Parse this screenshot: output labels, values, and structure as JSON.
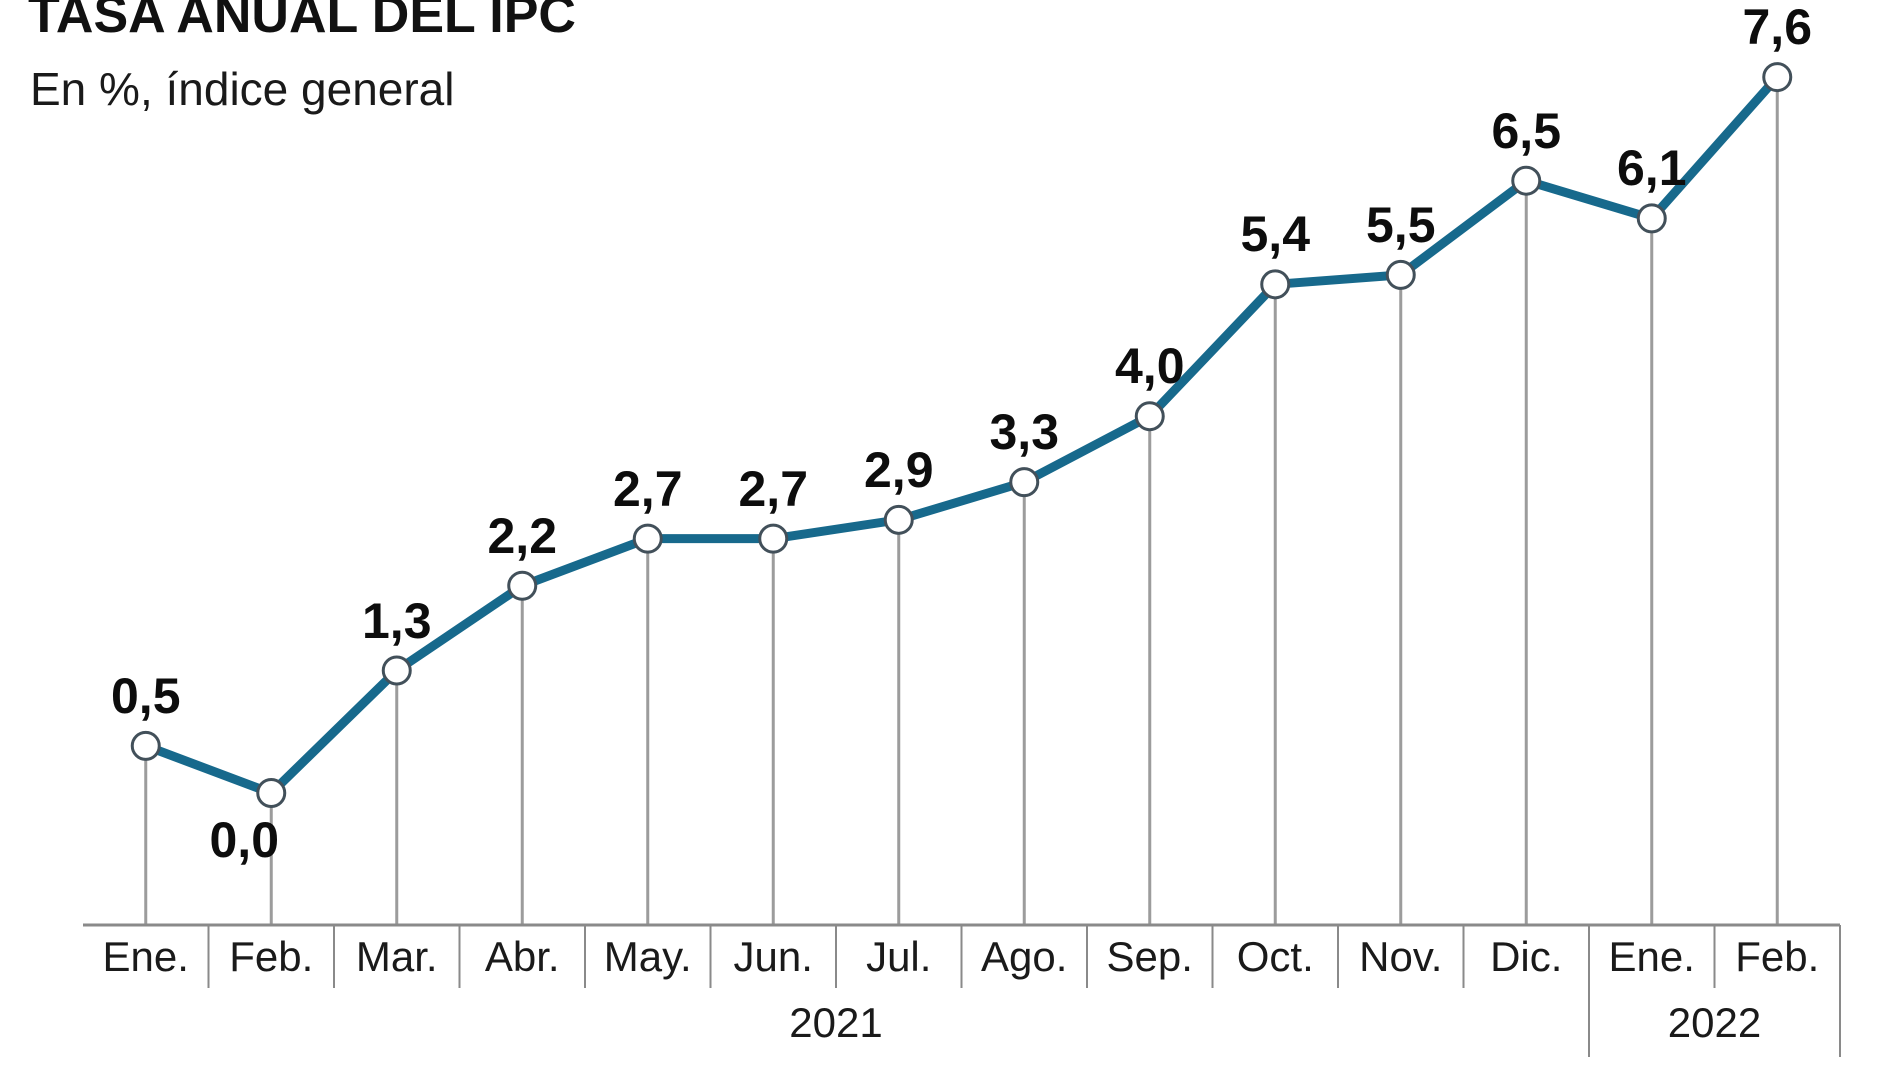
{
  "header": {
    "title": "TASA ANUAL DEL IPC",
    "subtitle": "En %, índice general"
  },
  "chart_data": {
    "type": "line",
    "title": "TASA ANUAL DEL IPC",
    "subtitle": "En %, índice general",
    "unit": "%",
    "categories": [
      "Ene.",
      "Feb.",
      "Mar.",
      "Abr.",
      "May.",
      "Jun.",
      "Jul.",
      "Ago.",
      "Sep.",
      "Oct.",
      "Nov.",
      "Dic.",
      "Ene.",
      "Feb."
    ],
    "values": [
      0.5,
      0.0,
      1.3,
      2.2,
      2.7,
      2.7,
      2.9,
      3.3,
      4.0,
      5.4,
      5.5,
      6.5,
      6.1,
      7.6
    ],
    "value_labels": [
      "0,5",
      "0,0",
      "1,3",
      "2,2",
      "2,7",
      "2,7",
      "2,9",
      "3,3",
      "4,0",
      "5,4",
      "5,5",
      "6,5",
      "6,1",
      "7,6"
    ],
    "label_below_indexes": [
      1
    ],
    "year_groups": [
      {
        "label": "2021",
        "from": 0,
        "to": 11
      },
      {
        "label": "2022",
        "from": 12,
        "to": 13
      }
    ],
    "xlabel": "",
    "ylabel": "",
    "ylim": [
      -1.4,
      8.4
    ],
    "grid": false,
    "legend": null,
    "marker_shape": "open-circle",
    "colors": {
      "line": "#17698c",
      "marker_fill": "#ffffff",
      "marker_stroke": "#42505a",
      "dropline": "#9c9c9c",
      "axis": "#8a8a8a",
      "tick": "#8a8a8a",
      "text": "#1a1a1a"
    }
  }
}
